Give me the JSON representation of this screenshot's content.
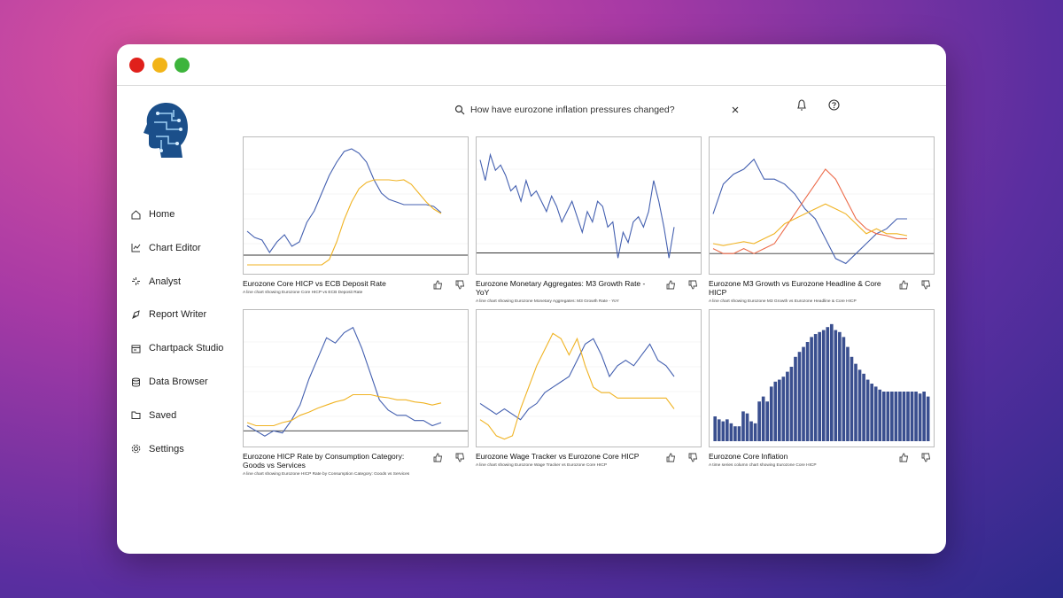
{
  "search": {
    "query": "How have eurozone inflation pressures changed?"
  },
  "nav": [
    "Home",
    "Chart Editor",
    "Analyst",
    "Report Writer",
    "Chartpack Studio",
    "Data Browser",
    "Saved",
    "Settings"
  ],
  "cards": [
    {
      "title": "Eurozone Core HICP vs ECB Deposit Rate",
      "description": "A line chart showing Eurozone Core HICP vs ECB Deposit Rate",
      "chart": {
        "type": "line",
        "ylim": [
          -15,
          125
        ],
        "series": [
          {
            "color": "#4460b0",
            "values": [
              27,
              20,
              17,
              3,
              15,
              23,
              10,
              15,
              37,
              50,
              70,
              90,
              105,
              117,
              120,
              115,
              105,
              85,
              70,
              63,
              60,
              57,
              57,
              57,
              57,
              55,
              48
            ]
          },
          {
            "color": "#f0b323",
            "values": [
              -11,
              -11,
              -11,
              -11,
              -11,
              -11,
              -11,
              -11,
              -11,
              -11,
              -11,
              -5,
              15,
              40,
              60,
              75,
              82,
              85,
              85,
              85,
              84,
              85,
              80,
              70,
              60,
              52,
              47
            ]
          }
        ]
      }
    },
    {
      "title": "Eurozone Monetary Aggregates: M3 Growth Rate - YoY",
      "description": "A line chart showing Eurozone Monetary Aggregates: M3 Growth Rate - YoY",
      "chart": {
        "type": "line",
        "ylim": [
          -15,
          105
        ],
        "series": [
          {
            "color": "#4460b0",
            "values": [
              90,
              70,
              95,
              80,
              85,
              75,
              60,
              65,
              50,
              70,
              55,
              60,
              50,
              40,
              55,
              45,
              30,
              40,
              50,
              35,
              20,
              40,
              30,
              50,
              45,
              25,
              30,
              -5,
              20,
              10,
              30,
              35,
              25,
              40,
              70,
              50,
              25,
              -5,
              25
            ]
          }
        ]
      }
    },
    {
      "title": "Eurozone M3 Growth vs Eurozone Headline & Core HICP",
      "description": "A line chart showing Eurozone M3 Growth vs Eurozone Headline & Core HICP",
      "chart": {
        "type": "line",
        "ylim": [
          -15,
          110
        ],
        "series": [
          {
            "color": "#4460b0",
            "values": [
              40,
              70,
              80,
              85,
              95,
              75,
              75,
              70,
              60,
              45,
              35,
              15,
              -5,
              -10,
              0,
              10,
              20,
              25,
              35,
              35
            ]
          },
          {
            "color": "#ec6b4a",
            "values": [
              5,
              0,
              0,
              5,
              0,
              5,
              10,
              25,
              40,
              55,
              70,
              85,
              75,
              55,
              35,
              25,
              20,
              18,
              15,
              15
            ]
          },
          {
            "color": "#f0b323",
            "values": [
              10,
              8,
              10,
              12,
              10,
              15,
              20,
              30,
              35,
              40,
              45,
              50,
              45,
              40,
              30,
              20,
              25,
              20,
              20,
              18
            ]
          }
        ]
      }
    },
    {
      "title": "Eurozone HICP Rate by Consumption Category: Goods vs Services",
      "description": "A line chart showing Eurozone HICP Rate by Consumption Category: Goods vs Services",
      "chart": {
        "type": "line",
        "ylim": [
          -10,
          110
        ],
        "series": [
          {
            "color": "#4460b0",
            "values": [
              5,
              0,
              -5,
              0,
              -2,
              10,
              25,
              50,
              70,
              90,
              85,
              95,
              100,
              80,
              55,
              30,
              20,
              15,
              15,
              10,
              10,
              5,
              8
            ]
          },
          {
            "color": "#f0b323",
            "values": [
              8,
              5,
              5,
              5,
              8,
              10,
              15,
              18,
              22,
              25,
              28,
              30,
              35,
              35,
              35,
              33,
              32,
              30,
              30,
              28,
              27,
              25,
              27
            ]
          }
        ]
      }
    },
    {
      "title": "Eurozone Wage Tracker vs Eurozone Core HICP",
      "description": "A line chart showing Eurozone Wage Tracker vs Eurozone Core HICP",
      "chart": {
        "type": "line",
        "ylim": [
          0,
          115
        ],
        "series": [
          {
            "color": "#4460b0",
            "values": [
              35,
              30,
              25,
              30,
              25,
              20,
              30,
              35,
              45,
              50,
              55,
              60,
              75,
              90,
              95,
              80,
              60,
              70,
              75,
              70,
              80,
              90,
              75,
              70,
              60
            ]
          },
          {
            "color": "#f0b323",
            "values": [
              20,
              15,
              5,
              2,
              5,
              30,
              50,
              70,
              85,
              100,
              95,
              80,
              95,
              70,
              50,
              45,
              45,
              40,
              40,
              40,
              40,
              40,
              40,
              40,
              30
            ]
          }
        ]
      }
    },
    {
      "title": "Eurozone Core Inflation",
      "description": "A time series column chart showing Eurozone Core HICP",
      "chart": {
        "type": "bar",
        "ylim": [
          0,
          125
        ],
        "series": [
          {
            "color": "#3a4f8f",
            "values": [
              25,
              22,
              20,
              22,
              18,
              15,
              15,
              30,
              28,
              20,
              18,
              40,
              45,
              40,
              55,
              60,
              62,
              65,
              70,
              75,
              85,
              90,
              95,
              100,
              105,
              108,
              110,
              112,
              115,
              118,
              112,
              110,
              105,
              95,
              85,
              78,
              72,
              68,
              62,
              58,
              55,
              52,
              50,
              50,
              50,
              50,
              50,
              50,
              50,
              50,
              50,
              48,
              50,
              45
            ]
          }
        ]
      }
    }
  ]
}
